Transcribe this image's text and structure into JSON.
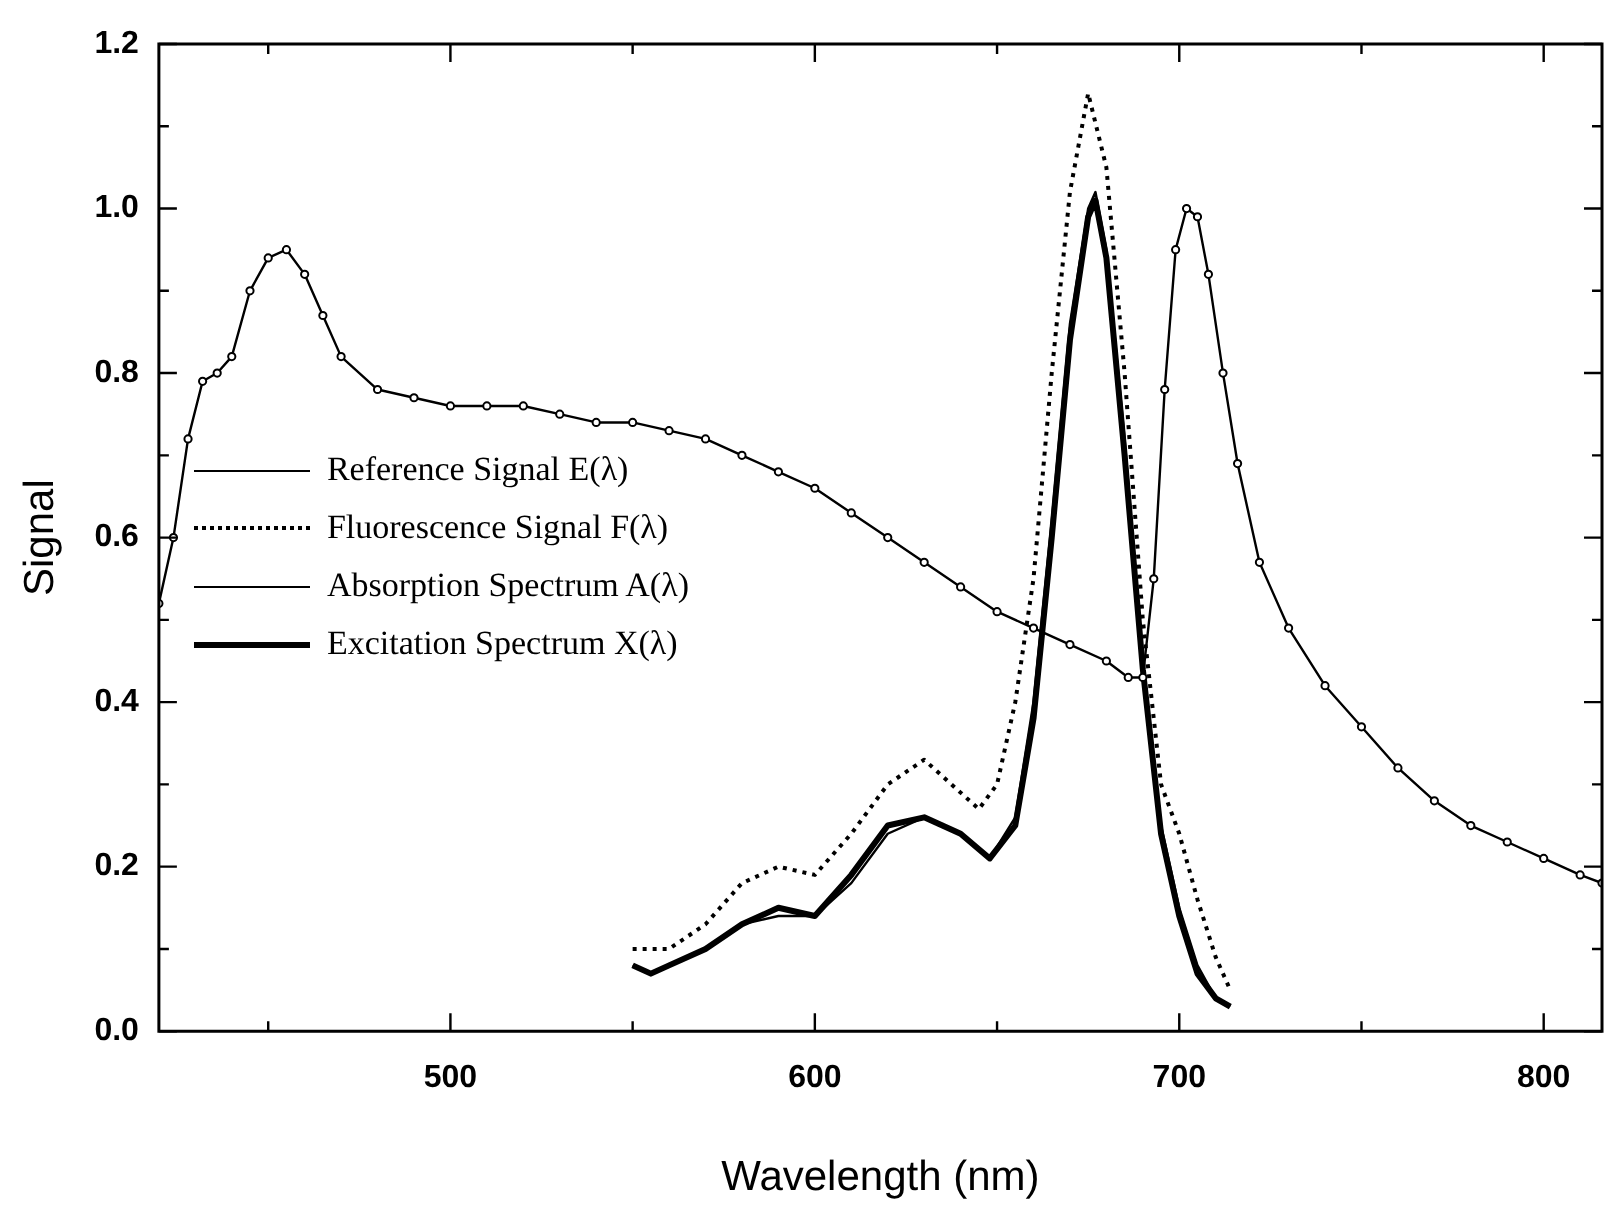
{
  "chart_data": {
    "type": "line",
    "xlabel": "Wavelength (nm)",
    "ylabel": "Signal",
    "xlim": [
      420,
      816
    ],
    "ylim": [
      0,
      1.2
    ],
    "xticks": [
      {
        "value": 450,
        "label": null
      },
      500,
      {
        "value": 550,
        "label": null
      },
      600,
      {
        "value": 650,
        "label": null
      },
      700,
      {
        "value": 750,
        "label": null
      },
      800
    ],
    "yticks": [
      "0.0",
      {
        "value": 0.1,
        "label": null
      },
      0.2,
      {
        "value": 0.3,
        "label": null
      },
      0.4,
      {
        "value": 0.5,
        "label": null
      },
      0.6,
      {
        "value": 0.7,
        "label": null
      },
      0.8,
      {
        "value": 0.9,
        "label": null
      },
      "1.0",
      {
        "value": 1.1,
        "label": null
      },
      1.2
    ],
    "grid": false,
    "legend": "left",
    "series": [
      {
        "name": "Reference Signal E(λ)",
        "color": "#000000",
        "marker": "circle",
        "line_style": "solid",
        "x": [
          420,
          424,
          428,
          432,
          436,
          440,
          445,
          450,
          455,
          460,
          465,
          470,
          480,
          490,
          500,
          510,
          520,
          530,
          540,
          550,
          560,
          570,
          580,
          590,
          600,
          610,
          620,
          630,
          640,
          650,
          660,
          670,
          680,
          686,
          690,
          693,
          696,
          699,
          702,
          705,
          708,
          712,
          716,
          722,
          730,
          740,
          750,
          760,
          770,
          780,
          790,
          800,
          810,
          816
        ],
        "values": [
          0.52,
          0.6,
          0.72,
          0.79,
          0.8,
          0.82,
          0.9,
          0.94,
          0.95,
          0.92,
          0.87,
          0.82,
          0.78,
          0.77,
          0.76,
          0.76,
          0.76,
          0.75,
          0.74,
          0.74,
          0.73,
          0.72,
          0.7,
          0.68,
          0.66,
          0.63,
          0.6,
          0.57,
          0.54,
          0.51,
          0.49,
          0.47,
          0.45,
          0.43,
          0.43,
          0.55,
          0.78,
          0.95,
          1.0,
          0.99,
          0.92,
          0.8,
          0.69,
          0.57,
          0.49,
          0.42,
          0.37,
          0.32,
          0.28,
          0.25,
          0.23,
          0.21,
          0.19,
          0.18
        ]
      },
      {
        "name": "Fluorescence Signal F(λ)",
        "color": "#000000",
        "marker": "none",
        "line_style": "dotted",
        "x": [
          550,
          560,
          570,
          580,
          590,
          600,
          610,
          620,
          630,
          640,
          645,
          650,
          655,
          660,
          665,
          670,
          675,
          680,
          685,
          690,
          695,
          700,
          705,
          710,
          714
        ],
        "values": [
          0.1,
          0.1,
          0.13,
          0.18,
          0.2,
          0.19,
          0.24,
          0.3,
          0.33,
          0.29,
          0.27,
          0.3,
          0.4,
          0.55,
          0.8,
          1.02,
          1.14,
          1.05,
          0.8,
          0.5,
          0.3,
          0.24,
          0.16,
          0.09,
          0.05
        ]
      },
      {
        "name": "Absorption Spectrum A(λ)",
        "color": "#000000",
        "marker": "none",
        "line_style": "solid",
        "x": [
          550,
          555,
          560,
          570,
          580,
          590,
          600,
          610,
          620,
          630,
          640,
          648,
          655,
          660,
          665,
          670,
          675,
          677,
          680,
          685,
          690,
          695,
          700,
          705,
          710,
          714
        ],
        "values": [
          0.08,
          0.07,
          0.08,
          0.1,
          0.13,
          0.14,
          0.14,
          0.18,
          0.24,
          0.26,
          0.24,
          0.21,
          0.26,
          0.4,
          0.62,
          0.86,
          1.0,
          1.02,
          0.95,
          0.72,
          0.45,
          0.25,
          0.15,
          0.08,
          0.04,
          0.03
        ]
      },
      {
        "name": "Excitation Spectrum X(λ)",
        "color": "#000000",
        "marker": "none",
        "line_style": "solid",
        "x": [
          550,
          555,
          560,
          570,
          580,
          590,
          600,
          610,
          620,
          630,
          640,
          648,
          655,
          660,
          665,
          670,
          675,
          677,
          680,
          685,
          690,
          695,
          700,
          705,
          710,
          714
        ],
        "values": [
          0.08,
          0.07,
          0.08,
          0.1,
          0.13,
          0.15,
          0.14,
          0.19,
          0.25,
          0.26,
          0.24,
          0.21,
          0.25,
          0.38,
          0.6,
          0.84,
          0.99,
          1.01,
          0.94,
          0.7,
          0.44,
          0.24,
          0.14,
          0.07,
          0.04,
          0.03
        ]
      }
    ]
  }
}
